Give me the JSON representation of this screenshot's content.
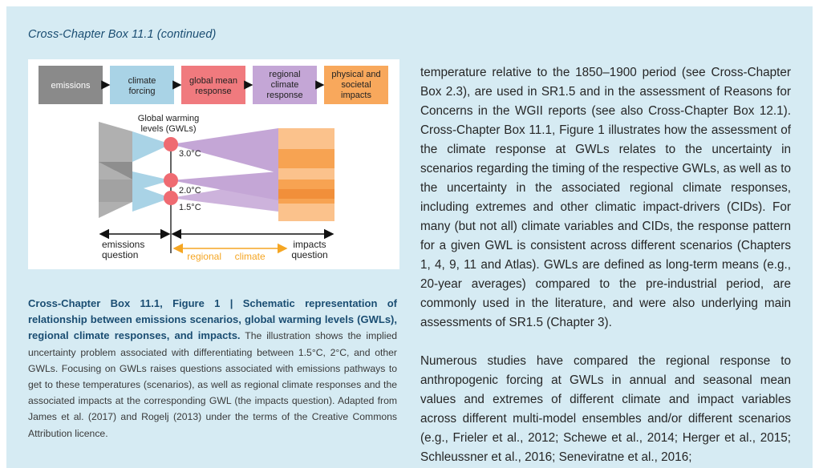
{
  "box_title": "Cross-Chapter Box 11.1 (continued)",
  "figure": {
    "boxes": [
      {
        "label": "emissions",
        "color": "#8a8a8a"
      },
      {
        "label": "climate forcing",
        "color": "#a9d3e6"
      },
      {
        "label": "global mean response",
        "color": "#f07a7e"
      },
      {
        "label": "regional climate response",
        "color": "#c4a6d6"
      },
      {
        "label": "physical and societal impacts",
        "color": "#f8a85c"
      }
    ],
    "gwl_title": "Global warming levels (GWLs)",
    "gwl_levels": [
      "3.0°C",
      "2.0°C",
      "1.5°C"
    ],
    "emissions_question": "emissions question",
    "regional_climate": "regional climate",
    "impacts_question": "impacts question"
  },
  "caption": {
    "bold": "Cross-Chapter Box 11.1, Figure 1 | Schematic representation of relationship between emissions scenarios, global warming levels (GWLs), regional climate responses, and impacts.",
    "text": " The illustration shows the implied uncertainty problem associated with differentiating between 1.5°C, 2°C, and other GWLs. Focusing on GWLs raises questions associated with emissions pathways to get to these temperatures (scenarios), as well as regional climate responses and the associated impacts at the corresponding GWL (the impacts question). Adapted from James et al. (2017) and Rogelj (2013) under the terms of the Creative Commons Attribution licence."
  },
  "body": {
    "p1": "temperature relative to the 1850–1900 period (see Cross-Chapter Box 2.3), are used in SR1.5 and in the assessment of Reasons for Concerns in the WGII reports (see also Cross-Chapter Box 12.1). Cross-Chapter Box 11.1, Figure 1 illustrates how the assessment of the climate response at GWLs relates to the uncertainty in scenarios regarding the timing of the respective GWLs, as well as to the uncertainty in the associated regional climate responses, including extremes and other climatic impact-drivers (CIDs). For many (but not all) climate variables and CIDs, the response pattern for a given GWL is consistent across different scenarios (Chapters 1, 4, 9, 11 and Atlas). GWLs are defined as long-term means (e.g., 20-year averages) compared to the pre-industrial period, are commonly used in the literature, and were also underlying main assessments of SR1.5 (Chapter 3).",
    "p2": "Numerous studies have compared the regional response to anthropogenic forcing at GWLs in annual and seasonal mean values and extremes of different climate and impact variables across different multi-model ensembles and/or different scenarios (e.g., Frieler et al., 2012; Schewe et al., 2014; Herger et al., 2015; Schleussner et al., 2016; Seneviratne et al., 2016;"
  }
}
